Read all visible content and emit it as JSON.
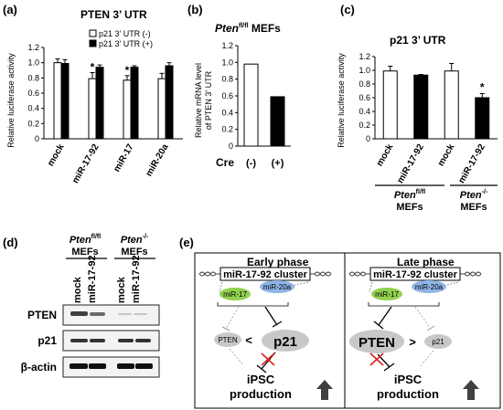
{
  "panels": {
    "a": {
      "label": "(a)",
      "title": "PTEN 3’ UTR",
      "ylabel": "Relative luciferase activity",
      "legend": [
        "p21 3’ UTR (-)",
        "p21 3’ UTR (+)"
      ]
    },
    "b": {
      "label": "(b)",
      "title_gene": "Pten",
      "title_sup": "fl/fl",
      "title_rest": " MEFs",
      "ylabel_line1": "Relative  mRNA level",
      "ylabel_line2": "of PTEN 3’ UTR",
      "xaxis_title": "Cre"
    },
    "c": {
      "label": "(c)",
      "title": "p21 3’ UTR",
      "ylabel": "Relative luciferase activity",
      "group1_gene": "Pten",
      "group1_sup": "fl/fl",
      "group2_gene": "Pten",
      "group2_sup": "-/-",
      "group_suffix": "MEFs"
    },
    "d": {
      "label": "(d)",
      "group1_gene": "Pten",
      "group1_sup": "fl/fl",
      "group2_gene": "Pten",
      "group2_sup": "-/-",
      "group_suffix": "MEFs",
      "lanes": [
        "mock",
        "miR-17-92",
        "mock",
        "miR-17-92"
      ],
      "rows": [
        "PTEN",
        "p21",
        "β-actin"
      ]
    },
    "e": {
      "label": "(e)",
      "early_title": "Early phase",
      "late_title": "Late phase",
      "cluster": "miR-17-92 cluster",
      "mir17": "miR-17",
      "mir20a": "miR-20a",
      "pten": "PTEN",
      "p21": "p21",
      "lt": "<",
      "gt": ">",
      "ipsc_line1": "iPSC",
      "ipsc_line2": "production"
    }
  },
  "chart_data": [
    {
      "panel": "a",
      "type": "bar",
      "categories": [
        "mock",
        "miR-17-92",
        "miR-17",
        "miR-20a"
      ],
      "series": [
        {
          "name": "p21 3’ UTR (-)",
          "values": [
            1.0,
            0.79,
            0.77,
            0.79
          ],
          "errors": [
            0.05,
            0.08,
            0.06,
            0.07
          ],
          "color": "#ffffff"
        },
        {
          "name": "p21 3’ UTR (+)",
          "values": [
            0.99,
            0.94,
            0.94,
            0.96
          ],
          "errors": [
            0.05,
            0.03,
            0.02,
            0.04
          ],
          "color": "#000000"
        }
      ],
      "annotations": [
        {
          "category": "miR-17-92",
          "series": 0,
          "text": "*"
        },
        {
          "category": "miR-17",
          "series": 0,
          "text": "*"
        }
      ],
      "yticks": [
        "0",
        "0.2",
        "0.4",
        "0.6",
        "0.8",
        "1.0",
        "1.2"
      ],
      "ylim": [
        0,
        1.2
      ],
      "title": "PTEN 3’ UTR",
      "ylabel": "Relative luciferase activity",
      "grid": false,
      "legend_position": "top-right"
    },
    {
      "panel": "b",
      "type": "bar",
      "categories": [
        "(-)",
        "(+)"
      ],
      "values": [
        0.98,
        0.59
      ],
      "colors": [
        "#ffffff",
        "#000000"
      ],
      "yticks": [
        "0",
        "0.2",
        "0.4",
        "0.6",
        "0.8",
        "1.0",
        "1.2"
      ],
      "ylim": [
        0,
        1.2
      ],
      "xlabel": "Cre",
      "ylabel": "Relative mRNA level of PTEN 3’ UTR",
      "grid": false
    },
    {
      "panel": "c",
      "type": "bar",
      "categories": [
        "mock",
        "miR-17-92",
        "mock",
        "miR-17-92"
      ],
      "values": [
        0.99,
        0.93,
        0.99,
        0.6
      ],
      "errors": [
        0.07,
        0.01,
        0.11,
        0.06
      ],
      "colors": [
        "#ffffff",
        "#000000",
        "#ffffff",
        "#000000"
      ],
      "annotations": [
        {
          "index": 3,
          "text": "*"
        }
      ],
      "yticks": [
        "0",
        "0.2",
        "0.4",
        "0.6",
        "0.8",
        "1.0",
        "1.2"
      ],
      "ylim": [
        0,
        1.2
      ],
      "title": "p21 3’ UTR",
      "ylabel": "Relative luciferase activity",
      "grid": false
    }
  ]
}
